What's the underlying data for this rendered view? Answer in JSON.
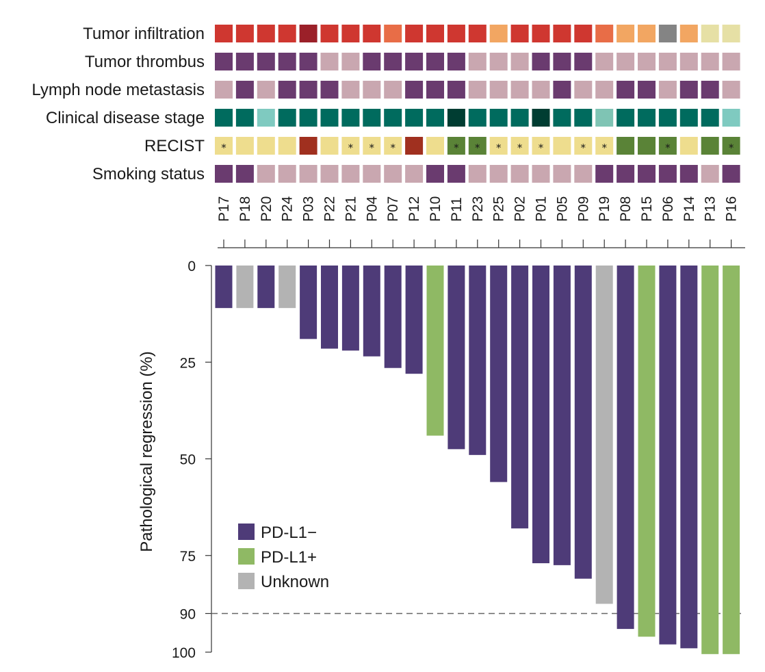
{
  "chart_data": {
    "type": "bar",
    "patients": [
      "P17",
      "P18",
      "P20",
      "P24",
      "P03",
      "P22",
      "P21",
      "P04",
      "P07",
      "P12",
      "P10",
      "P11",
      "P23",
      "P25",
      "P02",
      "P01",
      "P05",
      "P09",
      "P19",
      "P08",
      "P15",
      "P06",
      "P14",
      "P13",
      "P16"
    ],
    "values": [
      11,
      11,
      11,
      11,
      19,
      21.5,
      22,
      23.5,
      26.5,
      28,
      44,
      47.5,
      49,
      56,
      68,
      77,
      77.5,
      81,
      87.5,
      94,
      96,
      98,
      99,
      100.5,
      100.5
    ],
    "pdl1": [
      "neg",
      "unk",
      "neg",
      "unk",
      "neg",
      "neg",
      "neg",
      "neg",
      "neg",
      "neg",
      "pos",
      "neg",
      "neg",
      "neg",
      "neg",
      "neg",
      "neg",
      "neg",
      "unk",
      "neg",
      "pos",
      "neg",
      "neg",
      "pos",
      "pos"
    ],
    "ylabel": "Pathological regression (%)",
    "ylim": [
      0,
      100
    ],
    "yticks": [
      0,
      25,
      50,
      75,
      90,
      100
    ],
    "threshold": 90,
    "legend": [
      {
        "key": "neg",
        "label": "PD-L1−",
        "color": "#4e3b78"
      },
      {
        "key": "pos",
        "label": "PD-L1+",
        "color": "#8fb964"
      },
      {
        "key": "unk",
        "label": "Unknown",
        "color": "#b3b3b3"
      }
    ],
    "legend_position": "lower-left",
    "heatmap": {
      "rows": [
        {
          "label": "Tumor infiltration",
          "colors": [
            "#cf3730",
            "#cf3730",
            "#cf3730",
            "#cf3730",
            "#9b2029",
            "#cf3730",
            "#cf3730",
            "#cf3730",
            "#e86d47",
            "#cf3730",
            "#cf3730",
            "#cf3730",
            "#cf3730",
            "#f2a662",
            "#cf3730",
            "#cf3730",
            "#cf3730",
            "#cf3730",
            "#e86d47",
            "#f2a662",
            "#f2a662",
            "#848484",
            "#f2a662",
            "#e6e0a5",
            "#e6e0a5"
          ]
        },
        {
          "label": "Tumor thrombus",
          "colors": [
            "#6a3b6f",
            "#6a3b6f",
            "#6a3b6f",
            "#6a3b6f",
            "#6a3b6f",
            "#c9a7b0",
            "#c9a7b0",
            "#6a3b6f",
            "#6a3b6f",
            "#6a3b6f",
            "#6a3b6f",
            "#6a3b6f",
            "#c9a7b0",
            "#c9a7b0",
            "#c9a7b0",
            "#6a3b6f",
            "#6a3b6f",
            "#6a3b6f",
            "#c9a7b0",
            "#c9a7b0",
            "#c9a7b0",
            "#c9a7b0",
            "#c9a7b0",
            "#c9a7b0",
            "#c9a7b0"
          ]
        },
        {
          "label": "Lymph node metastasis",
          "colors": [
            "#c9a7b0",
            "#6a3b6f",
            "#c9a7b0",
            "#6a3b6f",
            "#6a3b6f",
            "#6a3b6f",
            "#c9a7b0",
            "#c9a7b0",
            "#c9a7b0",
            "#6a3b6f",
            "#6a3b6f",
            "#6a3b6f",
            "#c9a7b0",
            "#c9a7b0",
            "#c9a7b0",
            "#c9a7b0",
            "#6a3b6f",
            "#c9a7b0",
            "#c9a7b0",
            "#6a3b6f",
            "#6a3b6f",
            "#c9a7b0",
            "#6a3b6f",
            "#6a3b6f",
            "#c9a7b0"
          ]
        },
        {
          "label": "Clinical disease stage",
          "colors": [
            "#006b5e",
            "#006b5e",
            "#7fcac0",
            "#006b5e",
            "#006b5e",
            "#006b5e",
            "#006b5e",
            "#006b5e",
            "#006b5e",
            "#006b5e",
            "#006b5e",
            "#003d32",
            "#006b5e",
            "#006b5e",
            "#006b5e",
            "#003d32",
            "#006b5e",
            "#006b5e",
            "#7fc4b4",
            "#006b5e",
            "#006b5e",
            "#006b5e",
            "#006b5e",
            "#006b5e",
            "#7fcac0"
          ]
        },
        {
          "label": "RECIST",
          "colors": [
            "#eedd8e",
            "#eedd8e",
            "#eedd8e",
            "#eedd8e",
            "#a0301f",
            "#eedd8e",
            "#eedd8e",
            "#eedd8e",
            "#eedd8e",
            "#a0301f",
            "#eedd8e",
            "#5a8337",
            "#5a8337",
            "#eedd8e",
            "#eedd8e",
            "#eedd8e",
            "#eedd8e",
            "#eedd8e",
            "#eedd8e",
            "#5a8337",
            "#5a8337",
            "#5a8337",
            "#eedd8e",
            "#5a8337",
            "#5a8337"
          ],
          "stars": [
            true,
            false,
            false,
            false,
            false,
            false,
            true,
            true,
            true,
            false,
            false,
            true,
            true,
            true,
            true,
            true,
            false,
            true,
            true,
            false,
            false,
            true,
            false,
            false,
            true
          ]
        },
        {
          "label": "Smoking status",
          "colors": [
            "#6a3b6f",
            "#6a3b6f",
            "#c9a7b0",
            "#c9a7b0",
            "#c9a7b0",
            "#c9a7b0",
            "#c9a7b0",
            "#c9a7b0",
            "#c9a7b0",
            "#c9a7b0",
            "#6a3b6f",
            "#6a3b6f",
            "#c9a7b0",
            "#c9a7b0",
            "#c9a7b0",
            "#c9a7b0",
            "#c9a7b0",
            "#c9a7b0",
            "#6a3b6f",
            "#6a3b6f",
            "#6a3b6f",
            "#6a3b6f",
            "#6a3b6f",
            "#c9a7b0",
            "#6a3b6f"
          ]
        }
      ],
      "star_symbol": "*"
    }
  }
}
